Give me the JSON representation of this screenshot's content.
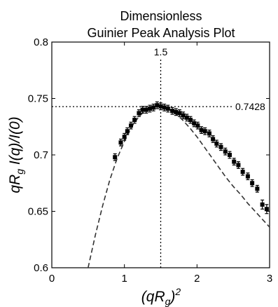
{
  "chart_data": {
    "type": "scatter",
    "title_lines": [
      "Dimensionless",
      "Guinier Peak Analysis Plot"
    ],
    "xlabel": {
      "main": "(qR",
      "sub": "g",
      "close": ")",
      "sup": "2"
    },
    "ylabel": {
      "pre": "qR",
      "sub": "g",
      "post": " I(q)/I(0)"
    },
    "xlim": [
      0,
      3
    ],
    "ylim": [
      0.6,
      0.8
    ],
    "xticks": [
      0,
      1,
      2,
      3
    ],
    "yticks": [
      0.6,
      0.65,
      0.7,
      0.75,
      0.8
    ],
    "x_tick_labels": [
      "0",
      "1",
      "2",
      "3"
    ],
    "y_tick_labels": [
      "0.6",
      "0.65",
      "0.7",
      "0.75",
      "0.8"
    ],
    "grid": false,
    "legend": "none",
    "reference_lines": [
      {
        "orientation": "vertical",
        "value": 1.5,
        "label": "1.5",
        "style": "dotted"
      },
      {
        "orientation": "horizontal",
        "value": 0.7428,
        "label": "0.7428",
        "style": "dotted"
      }
    ],
    "series": [
      {
        "kind": "points_with_error_bars",
        "x": [
          0.87,
          0.95,
          1.0,
          1.04,
          1.09,
          1.14,
          1.2,
          1.25,
          1.3,
          1.35,
          1.4,
          1.45,
          1.5,
          1.55,
          1.6,
          1.66,
          1.71,
          1.76,
          1.81,
          1.86,
          1.91,
          1.96,
          2.01,
          2.06,
          2.11,
          2.17,
          2.22,
          2.27,
          2.33,
          2.39,
          2.45,
          2.51,
          2.57,
          2.63,
          2.7,
          2.76,
          2.83,
          2.9,
          2.96
        ],
        "y": [
          0.698,
          0.711,
          0.716,
          0.721,
          0.726,
          0.731,
          0.737,
          0.74,
          0.74,
          0.741,
          0.742,
          0.744,
          0.743,
          0.742,
          0.741,
          0.739,
          0.738,
          0.737,
          0.735,
          0.733,
          0.731,
          0.728,
          0.726,
          0.722,
          0.721,
          0.719,
          0.714,
          0.71,
          0.707,
          0.703,
          0.7,
          0.694,
          0.691,
          0.685,
          0.681,
          0.675,
          0.67,
          0.656,
          0.652
        ],
        "error": [
          0.003,
          0.003,
          0.003,
          0.003,
          0.003,
          0.003,
          0.003,
          0.003,
          0.003,
          0.003,
          0.003,
          0.003,
          0.003,
          0.003,
          0.003,
          0.003,
          0.003,
          0.003,
          0.003,
          0.003,
          0.003,
          0.003,
          0.003,
          0.003,
          0.003,
          0.003,
          0.003,
          0.003,
          0.003,
          0.003,
          0.003,
          0.003,
          0.003,
          0.003,
          0.003,
          0.003,
          0.003,
          0.004,
          0.004
        ]
      },
      {
        "kind": "fit_curve",
        "style": "dashed",
        "x": [
          0.5,
          0.6,
          0.7,
          0.8,
          0.9,
          1.0,
          1.1,
          1.2,
          1.3,
          1.4,
          1.5,
          1.6,
          1.7,
          1.8,
          1.9,
          2.0,
          2.1,
          2.2,
          2.3,
          2.4,
          2.5,
          2.6,
          2.7,
          2.8,
          2.9,
          3.0
        ],
        "y": [
          0.6,
          0.629,
          0.655,
          0.678,
          0.697,
          0.712,
          0.725,
          0.734,
          0.74,
          0.743,
          0.743,
          0.741,
          0.737,
          0.731,
          0.724,
          0.716,
          0.707,
          0.698,
          0.689,
          0.68,
          0.672,
          0.665,
          0.657,
          0.65,
          0.643,
          0.636
        ]
      }
    ]
  }
}
